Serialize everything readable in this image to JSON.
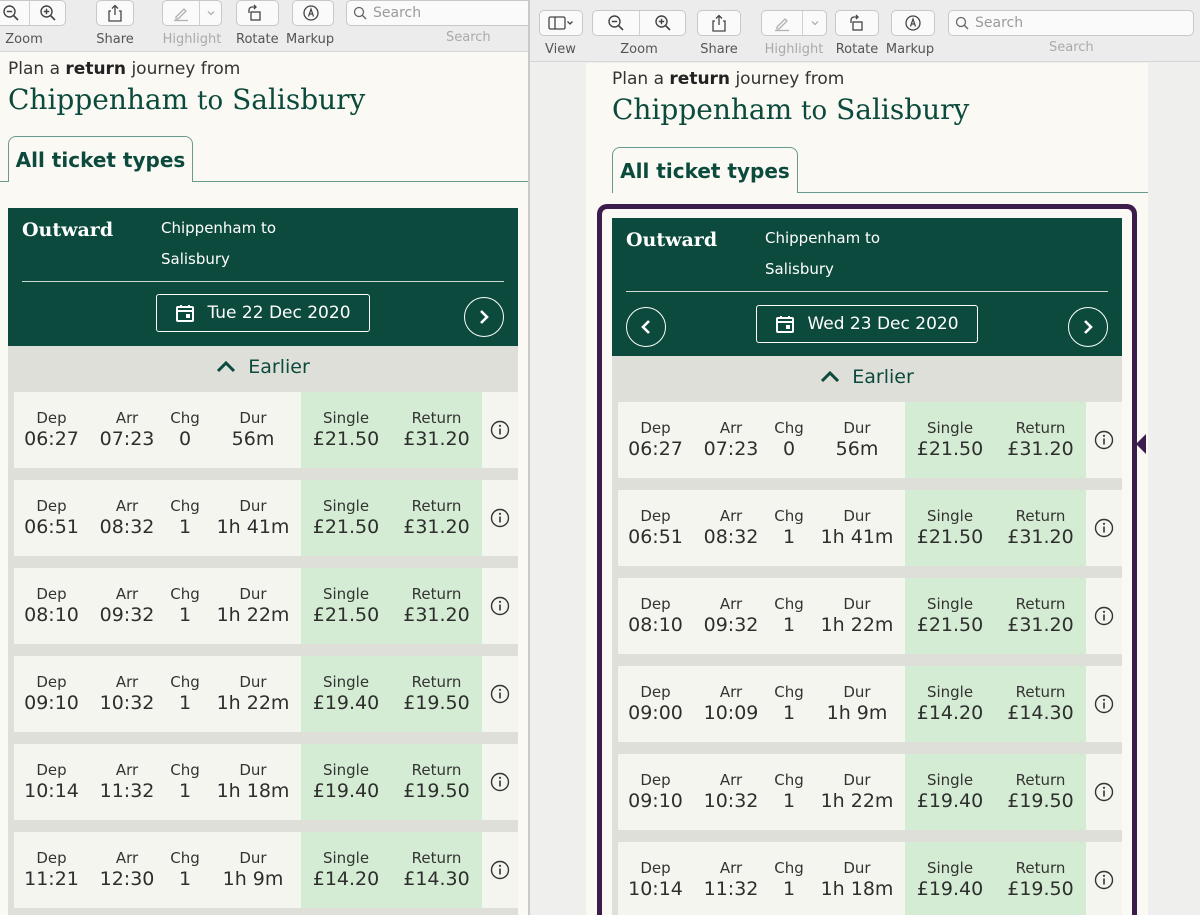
{
  "toolbar": {
    "view_label": "View",
    "zoom_label": "Zoom",
    "share_label": "Share",
    "highlight_label": "Highlight",
    "rotate_label": "Rotate",
    "markup_label": "Markup",
    "search_placeholder": "Search",
    "search_label": "Search"
  },
  "left": {
    "intro_pre": "Plan a",
    "intro_bold": "return",
    "intro_post": "journey from",
    "origin": "Chippenham",
    "to": "to",
    "destination": "Salisbury",
    "tab": "All ticket types",
    "outward": "Outward",
    "dest_line1": "Chippenham to",
    "dest_line2": "Salisbury",
    "date": "Tue 22 Dec 2020",
    "earlier": "Earlier",
    "rows": [
      {
        "dep": "06:27",
        "arr": "07:23",
        "chg": "0",
        "dur": "56m",
        "single": "£21.50",
        "return": "£31.20"
      },
      {
        "dep": "06:51",
        "arr": "08:32",
        "chg": "1",
        "dur": "1h 41m",
        "single": "£21.50",
        "return": "£31.20"
      },
      {
        "dep": "08:10",
        "arr": "09:32",
        "chg": "1",
        "dur": "1h 22m",
        "single": "£21.50",
        "return": "£31.20"
      },
      {
        "dep": "09:10",
        "arr": "10:32",
        "chg": "1",
        "dur": "1h 22m",
        "single": "£19.40",
        "return": "£19.50"
      },
      {
        "dep": "10:14",
        "arr": "11:32",
        "chg": "1",
        "dur": "1h 18m",
        "single": "£19.40",
        "return": "£19.50"
      },
      {
        "dep": "11:21",
        "arr": "12:30",
        "chg": "1",
        "dur": "1h 9m",
        "single": "£14.20",
        "return": "£14.30"
      }
    ]
  },
  "right": {
    "intro_pre": "Plan a",
    "intro_bold": "return",
    "intro_post": "journey from",
    "origin": "Chippenham",
    "to": "to",
    "destination": "Salisbury",
    "tab": "All ticket types",
    "outward": "Outward",
    "dest_line1": "Chippenham to",
    "dest_line2": "Salisbury",
    "date": "Wed 23 Dec 2020",
    "earlier": "Earlier",
    "rows": [
      {
        "dep": "06:27",
        "arr": "07:23",
        "chg": "0",
        "dur": "56m",
        "single": "£21.50",
        "return": "£31.20"
      },
      {
        "dep": "06:51",
        "arr": "08:32",
        "chg": "1",
        "dur": "1h 41m",
        "single": "£21.50",
        "return": "£31.20"
      },
      {
        "dep": "08:10",
        "arr": "09:32",
        "chg": "1",
        "dur": "1h 22m",
        "single": "£21.50",
        "return": "£31.20"
      },
      {
        "dep": "09:00",
        "arr": "10:09",
        "chg": "1",
        "dur": "1h 9m",
        "single": "£14.20",
        "return": "£14.30"
      },
      {
        "dep": "09:10",
        "arr": "10:32",
        "chg": "1",
        "dur": "1h 22m",
        "single": "£19.40",
        "return": "£19.50"
      },
      {
        "dep": "10:14",
        "arr": "11:32",
        "chg": "1",
        "dur": "1h 18m",
        "single": "£19.40",
        "return": "£19.50"
      }
    ]
  },
  "column_headers": {
    "dep": "Dep",
    "arr": "Arr",
    "chg": "Chg",
    "dur": "Dur",
    "single": "Single",
    "return": "Return"
  },
  "colors": {
    "brand_green": "#0b4a3c",
    "price_bg": "#d5ecd4",
    "focus_frame": "#3b1c4d"
  }
}
